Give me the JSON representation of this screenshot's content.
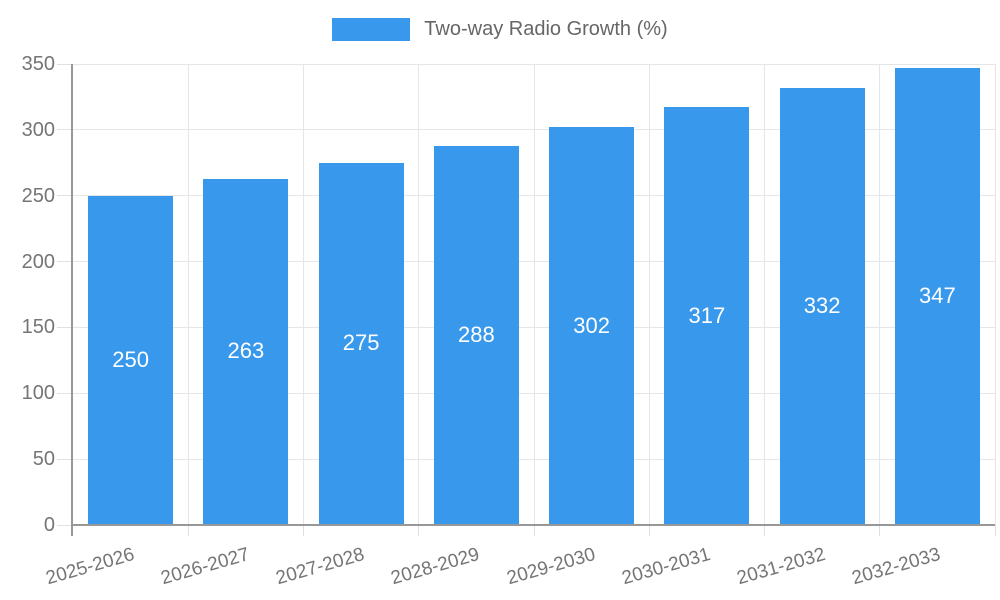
{
  "legend": {
    "label": "Two-way Radio Growth (%)"
  },
  "chart_data": {
    "type": "bar",
    "title": "",
    "categories": [
      "2025-2026",
      "2026-2027",
      "2027-2028",
      "2028-2029",
      "2029-2030",
      "2030-2031",
      "2031-2032",
      "2032-2033"
    ],
    "series": [
      {
        "name": "Two-way Radio Growth (%)",
        "values": [
          250,
          263,
          275,
          288,
          302,
          317,
          332,
          347
        ]
      }
    ],
    "bar_value_labels": [
      "250",
      "263",
      "275",
      "288",
      "302",
      "317",
      "332",
      "347"
    ],
    "ylim": [
      0,
      350
    ],
    "yticks": [
      0,
      50,
      100,
      150,
      200,
      250,
      300,
      350
    ],
    "grid": true,
    "legend_position": "top-center",
    "colors": {
      "bar": "#3899ec",
      "bar_label": "#ffffff",
      "axis_text": "#757575",
      "legend_text": "#666666",
      "gridline": "#e6e6e6",
      "tick": "#e0e0e0",
      "axis_line": "#979797",
      "background": "#ffffff"
    }
  }
}
